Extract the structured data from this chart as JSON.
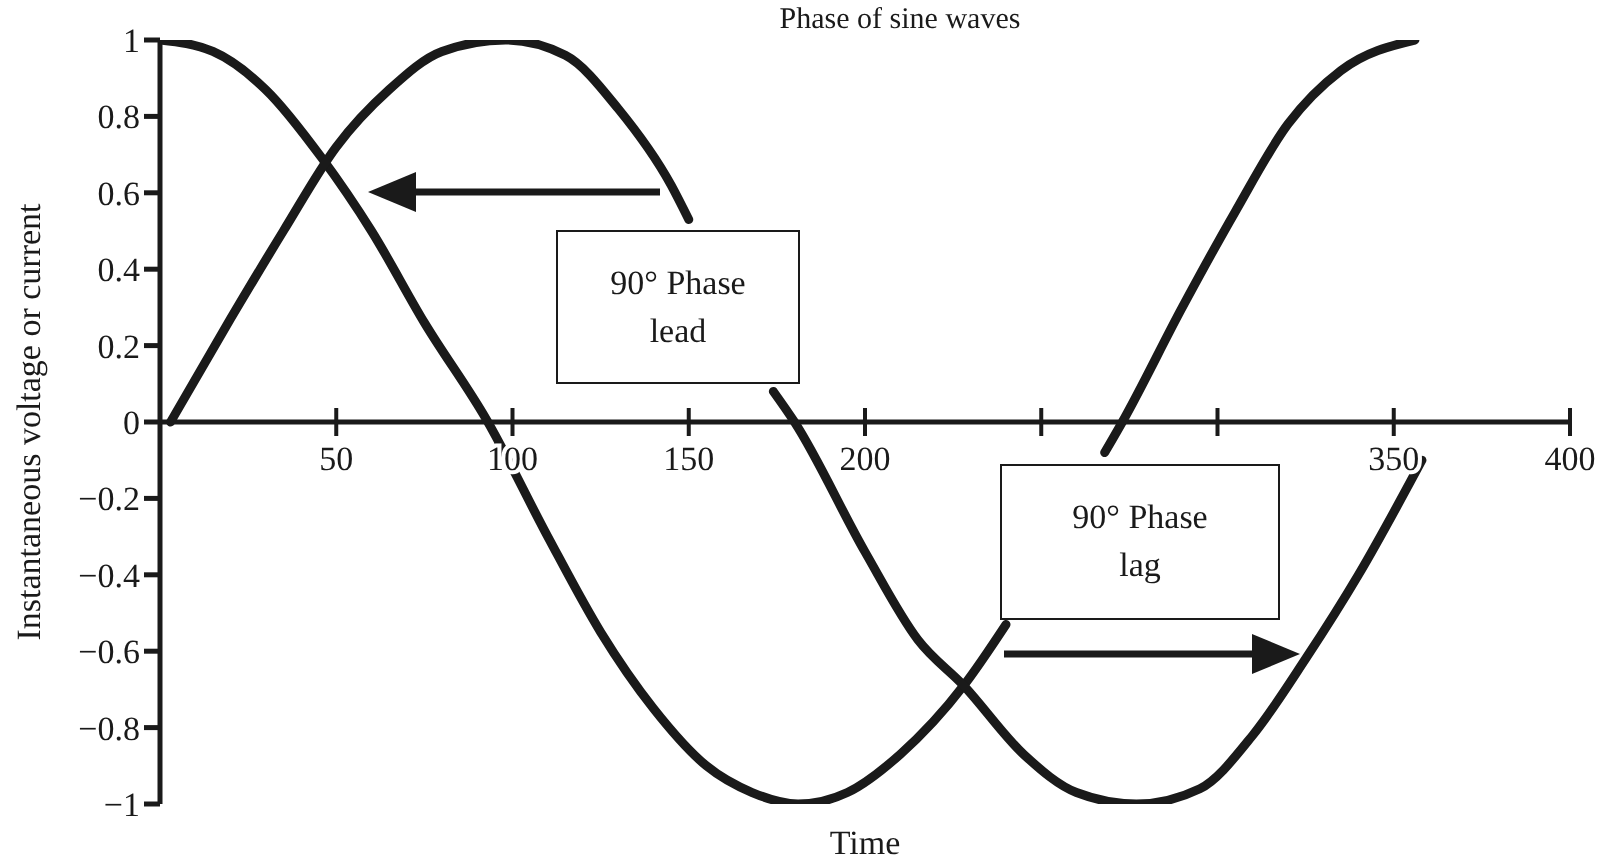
{
  "chart_data": {
    "type": "line",
    "title": "Phase of sine waves",
    "xlabel": "Time",
    "ylabel": "Instantaneous voltage or current",
    "series": [
      {
        "color": "#1a1a1a",
        "x": [
          0,
          15,
          30,
          46,
          60,
          75,
          93,
          110,
          125,
          140,
          155,
          168,
          181,
          195,
          210,
          228,
          240,
          252,
          268,
          273,
          290,
          305,
          320,
          335,
          356
        ],
        "values": [
          1,
          0.97,
          0.87,
          0.69,
          0.5,
          0.26,
          0,
          -0.3,
          -0.55,
          -0.75,
          -0.9,
          -0.97,
          -1,
          -0.97,
          -0.87,
          -0.69,
          -0.53,
          null,
          -0.08,
          0,
          0.3,
          0.55,
          0.78,
          0.92,
          1
        ]
      },
      {
        "color": "#1a1a1a",
        "x": [
          3,
          20,
          35,
          50,
          65,
          80,
          98,
          115,
          130,
          145,
          150,
          160,
          174,
          180,
          200,
          215,
          228,
          245,
          260,
          277,
          295,
          310,
          325,
          340,
          358
        ],
        "values": [
          0,
          0.27,
          0.5,
          0.72,
          0.87,
          0.97,
          1,
          0.96,
          0.82,
          0.62,
          0.53,
          null,
          0.08,
          0,
          -0.34,
          -0.57,
          -0.69,
          -0.87,
          -0.97,
          -1,
          -0.96,
          -0.82,
          -0.62,
          -0.4,
          -0.1
        ]
      }
    ],
    "xlim": [
      0,
      400
    ],
    "xticks": [
      50,
      100,
      150,
      200,
      {
        "value": 250,
        "label": null
      },
      {
        "value": 300,
        "label": null
      },
      350,
      400
    ],
    "ylim": [
      -1,
      1
    ],
    "yticks": [
      {
        "value": -1,
        "label": "−1"
      },
      {
        "value": -0.8,
        "label": "−0.8"
      },
      {
        "value": -0.6,
        "label": "−0.6"
      },
      {
        "value": -0.4,
        "label": "−0.4"
      },
      {
        "value": -0.2,
        "label": "−0.2"
      },
      0,
      0.2,
      0.4,
      0.6,
      0.8,
      1
    ],
    "annotations": [
      "90° Phase lead",
      "90° Phase lag"
    ],
    "grid": false,
    "marker": "none",
    "line_style": "solid"
  }
}
